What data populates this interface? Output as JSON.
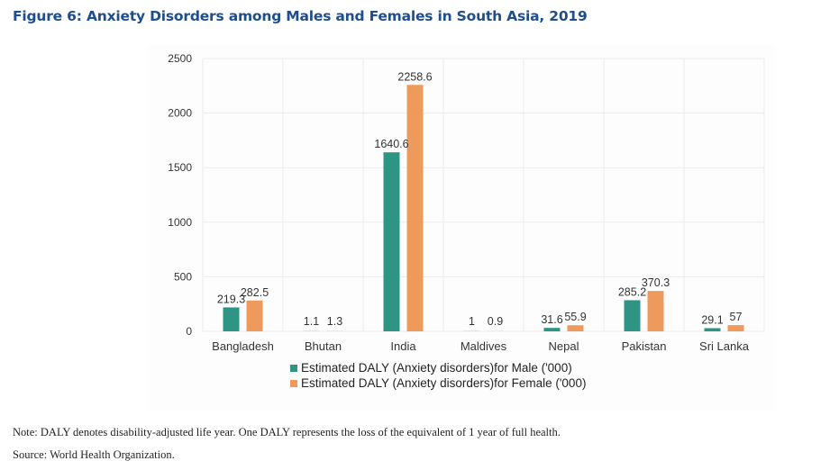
{
  "figure": {
    "title": "Figure 6: Anxiety Disorders among Males and Females in South Asia, 2019",
    "note": "Note: DALY denotes disability-adjusted life year. One DALY represents the loss of the equivalent of 1 year of full health.",
    "source": "Source: World Health Organization."
  },
  "chart_data": {
    "type": "bar",
    "title": "Anxiety Disorders among Males and Females in South Asia, 2019",
    "xlabel": "",
    "ylabel": "",
    "ylim": [
      0,
      2500
    ],
    "yticks": [
      0,
      500,
      1000,
      1500,
      2000,
      2500
    ],
    "grid": true,
    "legend_position": "bottom",
    "categories": [
      "Bangladesh",
      "Bhutan",
      "India",
      "Maldives",
      "Nepal",
      "Pakistan",
      "Sri Lanka"
    ],
    "series": [
      {
        "name": "Estimated DALY (Anxiety disorders)for Male ('000)",
        "color": "#2e9484",
        "values": [
          219.3,
          1.1,
          1640.6,
          1,
          31.6,
          285.2,
          29.1
        ],
        "labels": [
          "219.3",
          "1.1",
          "1640.6",
          "1",
          "31.6",
          "285.2",
          "29.1"
        ]
      },
      {
        "name": "Estimated DALY (Anxiety disorders)for Female ('000)",
        "color": "#ee9a5c",
        "values": [
          282.5,
          1.3,
          2258.6,
          0.9,
          55.9,
          370.3,
          57
        ],
        "labels": [
          "282.5",
          "1.3",
          "2258.6",
          "0.9",
          "55.9",
          "370.3",
          "57"
        ]
      }
    ]
  }
}
